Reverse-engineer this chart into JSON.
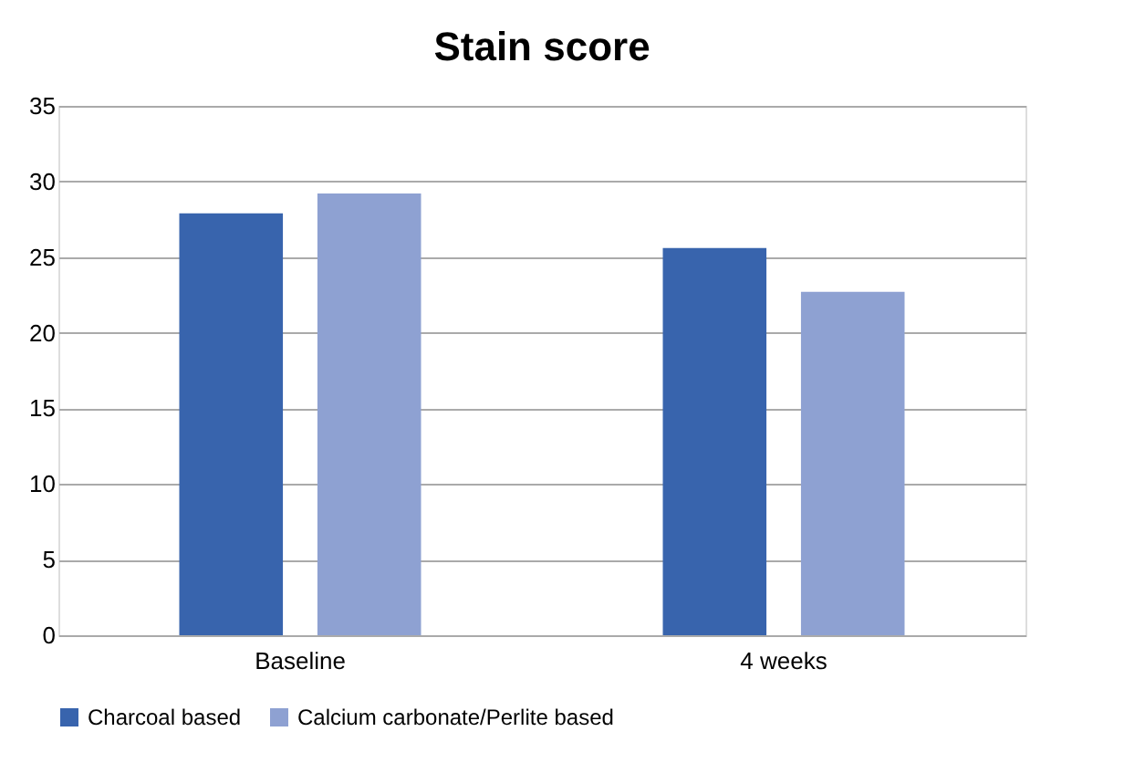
{
  "chart_data": {
    "type": "bar",
    "title": "Stain score",
    "categories": [
      "Baseline",
      "4 weeks"
    ],
    "series": [
      {
        "name": "Charcoal based",
        "color": "#3864ad",
        "values": [
          27.9,
          25.6
        ]
      },
      {
        "name": "Calcium carbonate/Perlite based",
        "color": "#8ea1d2",
        "values": [
          29.2,
          22.7
        ]
      }
    ],
    "ylim": [
      0,
      35
    ],
    "yticks": [
      0,
      5,
      10,
      15,
      20,
      25,
      30,
      35
    ],
    "grid": "y",
    "legend": "bottom"
  }
}
